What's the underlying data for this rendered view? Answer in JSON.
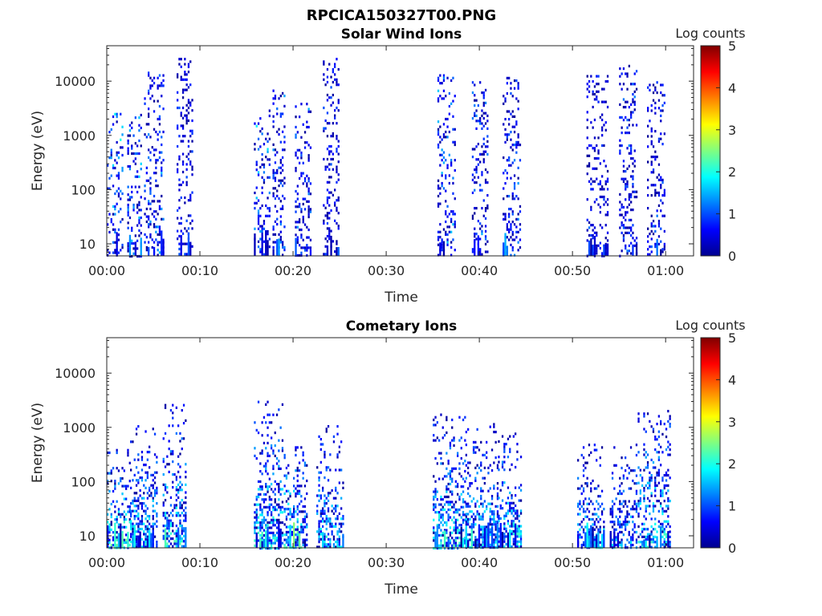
{
  "figure_title": "RPCICA150327T00.PNG",
  "colors": {
    "axis": "#262626",
    "jet": [
      "#00008f",
      "#0000ff",
      "#0080ff",
      "#00ffff",
      "#80ff80",
      "#ffff00",
      "#ff8000",
      "#ff0000",
      "#800000"
    ]
  },
  "chart_data": [
    {
      "type": "heatmap",
      "title": "Solar Wind Ions",
      "xlabel": "Time",
      "ylabel": "Energy (eV)",
      "x_ticks": [
        "00:00",
        "00:10",
        "00:20",
        "00:30",
        "00:40",
        "00:50",
        "01:00"
      ],
      "x_range_minutes": [
        0,
        63
      ],
      "y_scale": "log",
      "y_ticks": [
        10,
        100,
        1000,
        10000
      ],
      "y_tick_labels": [
        "10",
        "100",
        "1000",
        "10000"
      ],
      "y_range": [
        6,
        45000
      ],
      "colorbar": {
        "label": "Log counts",
        "range": [
          0,
          5
        ],
        "ticks": [
          "0",
          "1",
          "2",
          "3",
          "4",
          "5"
        ]
      },
      "bursts": [
        {
          "t": [
            0.0,
            1.8
          ],
          "e": [
            6,
            2600
          ],
          "max": 2.2
        },
        {
          "t": [
            2.2,
            3.8
          ],
          "e": [
            30,
            2500
          ],
          "max": 2.0
        },
        {
          "t": [
            4.0,
            6.2
          ],
          "e": [
            6,
            15000
          ],
          "max": 1.6
        },
        {
          "t": [
            7.5,
            9.2
          ],
          "e": [
            6,
            30000
          ],
          "max": 1.2
        },
        {
          "t": [
            15.8,
            17.5
          ],
          "e": [
            6,
            3000
          ],
          "max": 2.0
        },
        {
          "t": [
            17.8,
            19.2
          ],
          "e": [
            20,
            7000
          ],
          "max": 1.5
        },
        {
          "t": [
            20.2,
            22.0
          ],
          "e": [
            6,
            4000
          ],
          "max": 1.5
        },
        {
          "t": [
            23.2,
            25.0
          ],
          "e": [
            6,
            30000
          ],
          "max": 1.2
        },
        {
          "t": [
            35.5,
            37.5
          ],
          "e": [
            6,
            15000
          ],
          "max": 1.8
        },
        {
          "t": [
            39.2,
            41.0
          ],
          "e": [
            6,
            10000
          ],
          "max": 1.5
        },
        {
          "t": [
            42.5,
            44.5
          ],
          "e": [
            6,
            12000
          ],
          "max": 1.5
        },
        {
          "t": [
            51.5,
            53.8
          ],
          "e": [
            6,
            13000
          ],
          "max": 1.3
        },
        {
          "t": [
            55.0,
            57.0
          ],
          "e": [
            6,
            20000
          ],
          "max": 1.4
        },
        {
          "t": [
            58.0,
            60.0
          ],
          "e": [
            6,
            10000
          ],
          "max": 1.3
        }
      ]
    },
    {
      "type": "heatmap",
      "title": "Cometary Ions",
      "xlabel": "Time",
      "ylabel": "Energy (eV)",
      "x_ticks": [
        "00:00",
        "00:10",
        "00:20",
        "00:30",
        "00:40",
        "00:50",
        "01:00"
      ],
      "x_range_minutes": [
        0,
        63
      ],
      "y_scale": "log",
      "y_ticks": [
        10,
        100,
        1000,
        10000
      ],
      "y_tick_labels": [
        "10",
        "100",
        "1000",
        "10000"
      ],
      "y_range": [
        6,
        45000
      ],
      "colorbar": {
        "label": "Log counts",
        "range": [
          0,
          5
        ],
        "ticks": [
          "0",
          "1",
          "2",
          "3",
          "4",
          "5"
        ]
      },
      "bursts": [
        {
          "t": [
            0.0,
            2.5
          ],
          "e": [
            6,
            400
          ],
          "max": 2.6
        },
        {
          "t": [
            2.5,
            5.5
          ],
          "e": [
            6,
            1100
          ],
          "max": 2.2
        },
        {
          "t": [
            6.0,
            8.5
          ],
          "e": [
            6,
            2700
          ],
          "max": 2.4
        },
        {
          "t": [
            15.8,
            19.0
          ],
          "e": [
            6,
            3100
          ],
          "max": 2.4
        },
        {
          "t": [
            19.0,
            21.5
          ],
          "e": [
            6,
            500
          ],
          "max": 2.6
        },
        {
          "t": [
            22.5,
            25.5
          ],
          "e": [
            6,
            1100
          ],
          "max": 2.2
        },
        {
          "t": [
            35.0,
            38.5
          ],
          "e": [
            6,
            1800
          ],
          "max": 2.4
        },
        {
          "t": [
            38.5,
            42.0
          ],
          "e": [
            6,
            1200
          ],
          "max": 2.2
        },
        {
          "t": [
            42.0,
            44.5
          ],
          "e": [
            6,
            800
          ],
          "max": 2.4
        },
        {
          "t": [
            50.5,
            53.5
          ],
          "e": [
            6,
            500
          ],
          "max": 2.2
        },
        {
          "t": [
            54.0,
            57.0
          ],
          "e": [
            6,
            500
          ],
          "max": 2.0
        },
        {
          "t": [
            57.0,
            60.5
          ],
          "e": [
            6,
            2100
          ],
          "max": 2.4
        }
      ]
    }
  ]
}
